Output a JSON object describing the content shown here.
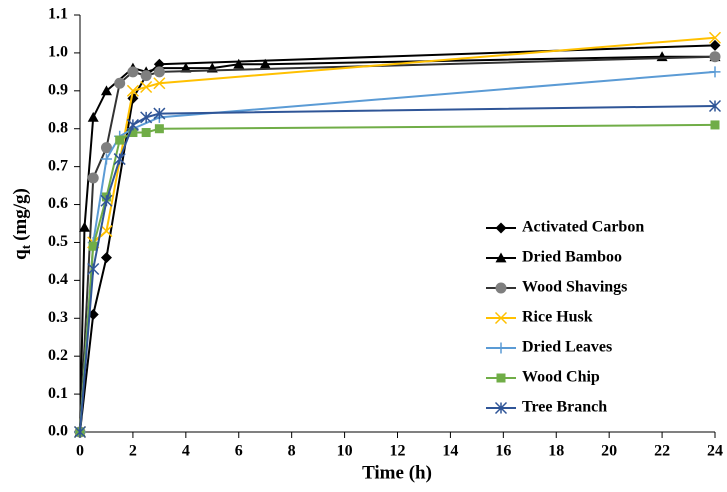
{
  "chart_data": {
    "type": "line",
    "x_label": "Time (h)",
    "y_label": "q",
    "y_label_sub": "t",
    "y_label_unit": "(mg/g)",
    "xlim": [
      0,
      24
    ],
    "xticks": [
      0,
      2,
      4,
      6,
      8,
      10,
      12,
      14,
      16,
      18,
      20,
      22,
      24
    ],
    "ylim": [
      0,
      1.1
    ],
    "yticks": [
      {
        "value": 0,
        "label": "0.0"
      },
      0.1,
      0.2,
      0.3,
      0.4,
      0.5,
      0.6,
      0.7,
      0.8,
      0.9,
      {
        "value": 1,
        "label": "1.0"
      },
      1.1
    ],
    "legend": "right",
    "series": [
      {
        "name": "Activated Carbon",
        "color": "#000000",
        "marker": "diamond",
        "x": [
          0,
          0.5,
          1,
          2,
          2.5,
          3,
          24
        ],
        "values": [
          0,
          0.31,
          0.46,
          0.88,
          0.94,
          0.97,
          1.02
        ]
      },
      {
        "name": "Dried Bamboo",
        "color": "#000000",
        "marker": "triangle",
        "x": [
          0,
          0.17,
          0.5,
          1,
          2,
          2.5,
          3,
          4,
          5,
          6,
          7,
          22,
          24
        ],
        "values": [
          0,
          0.54,
          0.83,
          0.9,
          0.96,
          0.95,
          0.96,
          0.96,
          0.96,
          0.97,
          0.97,
          0.99,
          0.99
        ]
      },
      {
        "name": "Wood Shavings",
        "color": "#7f7f7f",
        "marker": "circle",
        "x": [
          0,
          0.5,
          1,
          1.5,
          2,
          2.5,
          3,
          24
        ],
        "values": [
          0,
          0.67,
          0.75,
          0.92,
          0.95,
          0.94,
          0.95,
          0.99
        ]
      },
      {
        "name": "Rice Husk",
        "color": "#ffc000",
        "marker": "x",
        "x": [
          0,
          0.5,
          1,
          2,
          2.5,
          3,
          24
        ],
        "values": [
          0,
          0.5,
          0.53,
          0.9,
          0.91,
          0.92,
          1.04
        ]
      },
      {
        "name": "Dried Leaves",
        "color": "#5b9bd5",
        "marker": "plus",
        "x": [
          0,
          0.5,
          1,
          1.5,
          2,
          3,
          24
        ],
        "values": [
          0,
          0.5,
          0.72,
          0.78,
          0.8,
          0.83,
          0.95
        ]
      },
      {
        "name": "Wood Chip",
        "color": "#70ad47",
        "marker": "square",
        "x": [
          0,
          0.5,
          1,
          1.5,
          2,
          2.5,
          3,
          24
        ],
        "values": [
          0,
          0.49,
          0.62,
          0.77,
          0.79,
          0.79,
          0.8,
          0.81
        ]
      },
      {
        "name": "Tree Branch",
        "color": "#2f5597",
        "marker": "star",
        "x": [
          0,
          0.5,
          1,
          1.5,
          2,
          2.5,
          3,
          24
        ],
        "values": [
          0,
          0.43,
          0.61,
          0.72,
          0.81,
          0.83,
          0.84,
          0.86
        ]
      }
    ]
  }
}
